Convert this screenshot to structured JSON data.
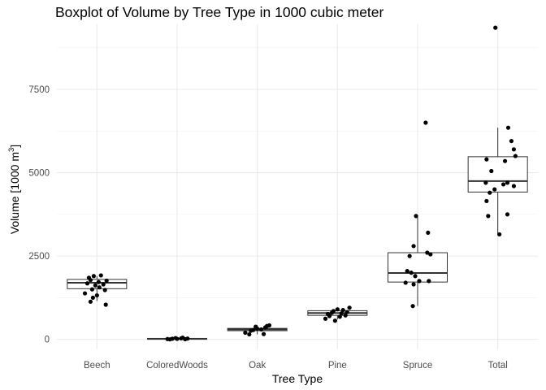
{
  "chart_data": {
    "type": "boxplot",
    "title": "Boxplot of Volume by Tree Type in 1000 cubic meter",
    "xlabel": "Tree Type",
    "ylabel_main": "Volume [1000 m",
    "ylabel_sup": "3",
    "ylabel_end": "]",
    "ylim": [
      -300,
      9450
    ],
    "yticks": [
      0,
      2500,
      5000,
      7500
    ],
    "ytick_labels": [
      "0",
      "2500",
      "5000",
      "7500"
    ],
    "grid": true,
    "categories": [
      "Beech",
      "ColoredWoods",
      "Oak",
      "Pine",
      "Spruce",
      "Total"
    ],
    "boxes": [
      {
        "category": "Beech",
        "whisker_low": 1150,
        "q1": 1520,
        "median": 1700,
        "q3": 1800,
        "whisker_high": 1900
      },
      {
        "category": "ColoredWoods",
        "whisker_low": 0,
        "q1": 5,
        "median": 15,
        "q3": 30,
        "whisker_high": 50
      },
      {
        "category": "Oak",
        "whisker_low": 150,
        "q1": 260,
        "median": 300,
        "q3": 330,
        "whisker_high": 420
      },
      {
        "category": "Pine",
        "whisker_low": 600,
        "q1": 720,
        "median": 790,
        "q3": 860,
        "whisker_high": 950
      },
      {
        "category": "Spruce",
        "whisker_low": 1000,
        "q1": 1720,
        "median": 1990,
        "q3": 2600,
        "whisker_high": 3700
      },
      {
        "category": "Total",
        "whisker_low": 3150,
        "q1": 4420,
        "median": 4750,
        "q3": 5480,
        "whisker_high": 6350
      }
    ],
    "points": [
      {
        "category": "Beech",
        "values": [
          {
            "jitter": -0.1,
            "y": 1850
          },
          {
            "jitter": -0.04,
            "y": 1900
          },
          {
            "jitter": 0.05,
            "y": 1920
          },
          {
            "jitter": -0.08,
            "y": 1780
          },
          {
            "jitter": 0.12,
            "y": 1760
          },
          {
            "jitter": 0.02,
            "y": 1720
          },
          {
            "jitter": -0.12,
            "y": 1680
          },
          {
            "jitter": 0.08,
            "y": 1650
          },
          {
            "jitter": -0.02,
            "y": 1620
          },
          {
            "jitter": 0.03,
            "y": 1560
          },
          {
            "jitter": -0.06,
            "y": 1500
          },
          {
            "jitter": 0.1,
            "y": 1480
          },
          {
            "jitter": -0.15,
            "y": 1380
          },
          {
            "jitter": 0.0,
            "y": 1320
          },
          {
            "jitter": -0.05,
            "y": 1250
          },
          {
            "jitter": -0.08,
            "y": 1130
          },
          {
            "jitter": 0.11,
            "y": 1040
          }
        ]
      },
      {
        "category": "ColoredWoods",
        "values": [
          {
            "jitter": -0.12,
            "y": 10
          },
          {
            "jitter": -0.06,
            "y": 20
          },
          {
            "jitter": 0.0,
            "y": 15
          },
          {
            "jitter": 0.05,
            "y": 30
          },
          {
            "jitter": 0.1,
            "y": 5
          },
          {
            "jitter": -0.02,
            "y": 40
          },
          {
            "jitter": 0.13,
            "y": 25
          },
          {
            "jitter": -0.09,
            "y": 0
          },
          {
            "jitter": 0.07,
            "y": 50
          }
        ]
      },
      {
        "category": "Oak",
        "values": [
          {
            "jitter": -0.15,
            "y": 200
          },
          {
            "jitter": -0.1,
            "y": 150
          },
          {
            "jitter": -0.05,
            "y": 280
          },
          {
            "jitter": 0.0,
            "y": 320
          },
          {
            "jitter": 0.05,
            "y": 300
          },
          {
            "jitter": 0.1,
            "y": 360
          },
          {
            "jitter": 0.12,
            "y": 400
          },
          {
            "jitter": -0.02,
            "y": 380
          },
          {
            "jitter": 0.15,
            "y": 420
          },
          {
            "jitter": 0.08,
            "y": 160
          },
          {
            "jitter": -0.08,
            "y": 260
          }
        ]
      },
      {
        "category": "Pine",
        "values": [
          {
            "jitter": -0.15,
            "y": 620
          },
          {
            "jitter": -0.1,
            "y": 700
          },
          {
            "jitter": -0.05,
            "y": 850
          },
          {
            "jitter": 0.0,
            "y": 900
          },
          {
            "jitter": 0.05,
            "y": 780
          },
          {
            "jitter": 0.1,
            "y": 720
          },
          {
            "jitter": 0.15,
            "y": 950
          },
          {
            "jitter": -0.12,
            "y": 760
          },
          {
            "jitter": -0.03,
            "y": 560
          },
          {
            "jitter": 0.07,
            "y": 880
          },
          {
            "jitter": 0.12,
            "y": 820
          },
          {
            "jitter": 0.03,
            "y": 680
          },
          {
            "jitter": -0.07,
            "y": 800
          }
        ]
      },
      {
        "category": "Spruce",
        "values": [
          {
            "jitter": 0.1,
            "y": 6500
          },
          {
            "jitter": -0.02,
            "y": 3700
          },
          {
            "jitter": 0.13,
            "y": 3200
          },
          {
            "jitter": -0.05,
            "y": 2800
          },
          {
            "jitter": 0.12,
            "y": 2600
          },
          {
            "jitter": 0.16,
            "y": 2550
          },
          {
            "jitter": -0.1,
            "y": 2500
          },
          {
            "jitter": -0.13,
            "y": 2050
          },
          {
            "jitter": -0.08,
            "y": 2000
          },
          {
            "jitter": -0.03,
            "y": 1900
          },
          {
            "jitter": -0.15,
            "y": 1700
          },
          {
            "jitter": 0.02,
            "y": 1750
          },
          {
            "jitter": -0.05,
            "y": 1650
          },
          {
            "jitter": 0.14,
            "y": 1750
          },
          {
            "jitter": -0.06,
            "y": 1000
          }
        ]
      },
      {
        "category": "Total",
        "values": [
          {
            "jitter": -0.03,
            "y": 9350
          },
          {
            "jitter": 0.13,
            "y": 6350
          },
          {
            "jitter": 0.17,
            "y": 5950
          },
          {
            "jitter": 0.2,
            "y": 5700
          },
          {
            "jitter": 0.22,
            "y": 5500
          },
          {
            "jitter": -0.14,
            "y": 5400
          },
          {
            "jitter": 0.09,
            "y": 5350
          },
          {
            "jitter": -0.08,
            "y": 5050
          },
          {
            "jitter": -0.15,
            "y": 4700
          },
          {
            "jitter": 0.07,
            "y": 4650
          },
          {
            "jitter": 0.12,
            "y": 4700
          },
          {
            "jitter": 0.2,
            "y": 4600
          },
          {
            "jitter": -0.1,
            "y": 4400
          },
          {
            "jitter": -0.14,
            "y": 4150
          },
          {
            "jitter": -0.04,
            "y": 4500
          },
          {
            "jitter": -0.12,
            "y": 3700
          },
          {
            "jitter": 0.12,
            "y": 3750
          },
          {
            "jitter": 0.02,
            "y": 3150
          }
        ]
      }
    ]
  }
}
